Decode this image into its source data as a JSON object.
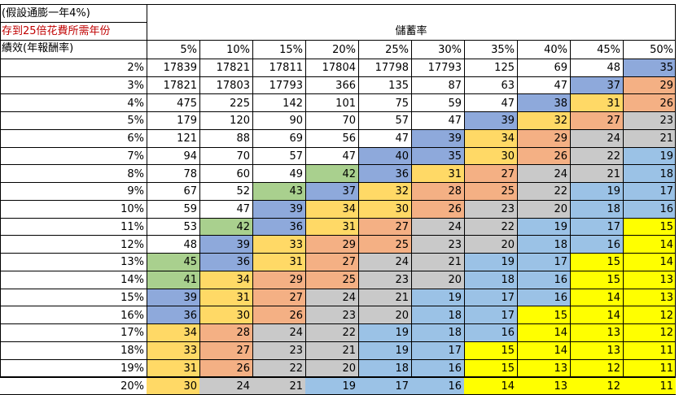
{
  "header": {
    "assumption": "(假設通膨一年4%)",
    "target": "存到25倍花費所需年份",
    "row_axis": "績效(年報酬率)",
    "column_axis": "儲蓄率"
  },
  "savings_rates": [
    "5%",
    "10%",
    "15%",
    "20%",
    "25%",
    "30%",
    "35%",
    "40%",
    "45%",
    "50%"
  ],
  "rows": [
    {
      "rate": "2%",
      "values": [
        17839,
        17821,
        17811,
        17804,
        17798,
        17793,
        125,
        69,
        48,
        35
      ]
    },
    {
      "rate": "3%",
      "values": [
        17821,
        17803,
        17793,
        366,
        135,
        87,
        63,
        47,
        37,
        29
      ]
    },
    {
      "rate": "4%",
      "values": [
        475,
        225,
        142,
        101,
        75,
        59,
        47,
        38,
        31,
        26
      ]
    },
    {
      "rate": "5%",
      "values": [
        179,
        120,
        90,
        70,
        57,
        47,
        39,
        32,
        27,
        23
      ]
    },
    {
      "rate": "6%",
      "values": [
        121,
        88,
        69,
        56,
        47,
        39,
        34,
        29,
        24,
        21
      ]
    },
    {
      "rate": "7%",
      "values": [
        94,
        70,
        57,
        47,
        40,
        35,
        30,
        26,
        22,
        19
      ]
    },
    {
      "rate": "8%",
      "values": [
        78,
        60,
        49,
        42,
        36,
        31,
        27,
        24,
        21,
        18
      ]
    },
    {
      "rate": "9%",
      "values": [
        67,
        52,
        43,
        37,
        32,
        28,
        25,
        22,
        19,
        17
      ]
    },
    {
      "rate": "10%",
      "values": [
        59,
        47,
        39,
        34,
        30,
        26,
        23,
        20,
        18,
        16
      ]
    },
    {
      "rate": "11%",
      "values": [
        53,
        42,
        36,
        31,
        27,
        24,
        22,
        19,
        17,
        15
      ]
    },
    {
      "rate": "12%",
      "values": [
        48,
        39,
        33,
        29,
        25,
        23,
        20,
        18,
        16,
        14
      ]
    },
    {
      "rate": "13%",
      "values": [
        45,
        36,
        31,
        27,
        24,
        21,
        19,
        17,
        15,
        14
      ]
    },
    {
      "rate": "14%",
      "values": [
        41,
        34,
        29,
        25,
        23,
        20,
        18,
        16,
        15,
        13
      ]
    },
    {
      "rate": "15%",
      "values": [
        39,
        31,
        27,
        24,
        21,
        19,
        17,
        16,
        14,
        13
      ]
    },
    {
      "rate": "16%",
      "values": [
        36,
        30,
        26,
        23,
        20,
        18,
        17,
        15,
        14,
        12
      ]
    },
    {
      "rate": "17%",
      "values": [
        34,
        28,
        24,
        22,
        19,
        18,
        16,
        14,
        13,
        12
      ]
    },
    {
      "rate": "18%",
      "values": [
        33,
        27,
        23,
        21,
        19,
        17,
        15,
        14,
        13,
        11
      ]
    },
    {
      "rate": "19%",
      "values": [
        31,
        26,
        22,
        20,
        18,
        16,
        15,
        13,
        12,
        11
      ]
    },
    {
      "rate": "20%",
      "values": [
        30,
        24,
        21,
        19,
        17,
        16,
        14,
        13,
        12,
        11
      ]
    }
  ],
  "fill_colors": {
    "green": "#a9d08e",
    "blue": "#8ea9db",
    "gold": "#ffd966",
    "salmon": "#f4b084",
    "gray": "#c9c9c9",
    "light_blue": "#9bc2e6",
    "yellow": "#ffff00"
  },
  "target_text_color": "#c00000"
}
